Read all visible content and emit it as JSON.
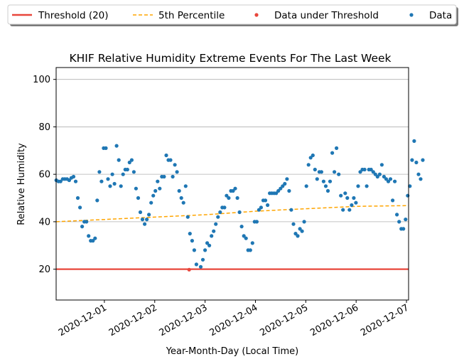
{
  "chart_data": {
    "type": "scatter",
    "title": "KHIF Relative Humidity Extreme Events For The Last Week",
    "xlabel": "Year-Month-Day (Local Time)",
    "ylabel": "Relative Humidity",
    "xlim": [
      "2020-11-30 01:00",
      "2020-12-07 01:00"
    ],
    "ylim": [
      7,
      105
    ],
    "yticks": [
      20,
      40,
      60,
      80,
      100
    ],
    "xticks": [
      "2020-12-01",
      "2020-12-02",
      "2020-12-03",
      "2020-12-04",
      "2020-12-05",
      "2020-12-06",
      "2020-12-07"
    ],
    "grid": "horizontal",
    "legend": {
      "placement": "top, above plot",
      "entries": [
        {
          "label": "Threshold (20)",
          "color": "#e8463b",
          "style": "solid line"
        },
        {
          "label": "5th Percentile",
          "color": "#ffa500",
          "style": "dashed line"
        },
        {
          "label": "Data under Threshold",
          "color": "#e8463b",
          "style": "dot"
        },
        {
          "label": "Data",
          "color": "#1f77b4",
          "style": "dot"
        }
      ]
    },
    "threshold": {
      "name": "Threshold (20)",
      "value": 20,
      "color": "#e8463b"
    },
    "percentile_5th": {
      "name": "5th Percentile",
      "color": "#ffa500",
      "points": [
        [
          "2020-11-30 01:00",
          40.0
        ],
        [
          "2020-12-01 01:00",
          41.0
        ],
        [
          "2020-12-02 01:00",
          42.0
        ],
        [
          "2020-12-03 01:00",
          43.0
        ],
        [
          "2020-12-04 01:00",
          44.5
        ],
        [
          "2020-12-05 01:00",
          45.5
        ],
        [
          "2020-12-06 01:00",
          46.5
        ],
        [
          "2020-12-07 01:00",
          46.8
        ]
      ]
    },
    "under_threshold": {
      "name": "Data under Threshold",
      "color": "#e8463b",
      "points": [
        [
          "2020-12-02 16:25",
          19.8
        ]
      ]
    },
    "series": [
      {
        "name": "Data",
        "color": "#1f77b4",
        "points": [
          [
            "2020-11-30 01:04",
            57.5
          ],
          [
            "2020-11-30 02:05",
            57
          ],
          [
            "2020-11-30 03:07",
            57
          ],
          [
            "2020-11-30 04:09",
            58
          ],
          [
            "2020-11-30 05:10",
            58
          ],
          [
            "2020-11-30 06:12",
            58
          ],
          [
            "2020-11-30 07:14",
            57.5
          ],
          [
            "2020-11-30 08:15",
            58.5
          ],
          [
            "2020-11-30 09:17",
            59
          ],
          [
            "2020-11-30 10:19",
            57
          ],
          [
            "2020-11-30 11:20",
            50
          ],
          [
            "2020-11-30 12:22",
            46
          ],
          [
            "2020-11-30 13:24",
            38
          ],
          [
            "2020-11-30 14:25",
            40
          ],
          [
            "2020-11-30 15:27",
            40
          ],
          [
            "2020-11-30 16:29",
            34
          ],
          [
            "2020-11-30 17:30",
            32
          ],
          [
            "2020-11-30 18:32",
            32
          ],
          [
            "2020-11-30 19:34",
            33
          ],
          [
            "2020-11-30 20:35",
            49
          ],
          [
            "2020-11-30 21:37",
            61
          ],
          [
            "2020-11-30 22:39",
            57
          ],
          [
            "2020-11-30 23:40",
            71
          ],
          [
            "2020-12-01 00:42",
            71
          ],
          [
            "2020-12-01 01:44",
            58
          ],
          [
            "2020-12-01 02:45",
            55
          ],
          [
            "2020-12-01 03:47",
            60
          ],
          [
            "2020-12-01 04:49",
            56
          ],
          [
            "2020-12-01 05:50",
            72
          ],
          [
            "2020-12-01 06:52",
            66
          ],
          [
            "2020-12-01 07:54",
            55
          ],
          [
            "2020-12-01 08:55",
            60
          ],
          [
            "2020-12-01 09:57",
            62
          ],
          [
            "2020-12-01 10:59",
            62
          ],
          [
            "2020-12-01 12:00",
            65
          ],
          [
            "2020-12-01 13:02",
            66
          ],
          [
            "2020-12-01 14:04",
            61
          ],
          [
            "2020-12-01 15:05",
            54
          ],
          [
            "2020-12-01 16:07",
            50
          ],
          [
            "2020-12-01 17:09",
            44
          ],
          [
            "2020-12-01 18:10",
            41
          ],
          [
            "2020-12-01 19:12",
            39
          ],
          [
            "2020-12-01 20:14",
            41
          ],
          [
            "2020-12-01 21:15",
            43
          ],
          [
            "2020-12-01 22:17",
            48
          ],
          [
            "2020-12-01 23:19",
            51
          ],
          [
            "2020-12-02 00:20",
            53
          ],
          [
            "2020-12-02 01:22",
            57
          ],
          [
            "2020-12-02 02:24",
            54
          ],
          [
            "2020-12-02 03:25",
            59
          ],
          [
            "2020-12-02 04:27",
            59
          ],
          [
            "2020-12-02 05:29",
            68
          ],
          [
            "2020-12-02 06:30",
            66
          ],
          [
            "2020-12-02 07:32",
            66
          ],
          [
            "2020-12-02 08:34",
            59
          ],
          [
            "2020-12-02 09:35",
            64
          ],
          [
            "2020-12-02 10:37",
            61
          ],
          [
            "2020-12-02 11:39",
            53
          ],
          [
            "2020-12-02 12:40",
            50
          ],
          [
            "2020-12-02 13:42",
            48
          ],
          [
            "2020-12-02 14:44",
            55
          ],
          [
            "2020-12-02 15:45",
            42
          ],
          [
            "2020-12-02 16:47",
            35
          ],
          [
            "2020-12-02 17:49",
            32
          ],
          [
            "2020-12-02 18:50",
            28
          ],
          [
            "2020-12-02 19:52",
            22
          ],
          [
            "2020-12-02 21:55",
            21
          ],
          [
            "2020-12-02 22:57",
            24
          ],
          [
            "2020-12-02 23:59",
            28
          ],
          [
            "2020-12-03 01:00",
            31
          ],
          [
            "2020-12-03 02:02",
            30
          ],
          [
            "2020-12-03 03:04",
            34
          ],
          [
            "2020-12-03 04:05",
            36
          ],
          [
            "2020-12-03 05:07",
            39
          ],
          [
            "2020-12-03 06:09",
            42
          ],
          [
            "2020-12-03 07:10",
            44
          ],
          [
            "2020-12-03 08:12",
            46
          ],
          [
            "2020-12-03 09:14",
            46
          ],
          [
            "2020-12-03 10:15",
            51
          ],
          [
            "2020-12-03 11:17",
            50
          ],
          [
            "2020-12-03 12:19",
            53
          ],
          [
            "2020-12-03 13:20",
            53
          ],
          [
            "2020-12-03 14:22",
            54
          ],
          [
            "2020-12-03 15:24",
            50
          ],
          [
            "2020-12-03 16:25",
            44
          ],
          [
            "2020-12-03 17:27",
            38
          ],
          [
            "2020-12-03 18:29",
            34
          ],
          [
            "2020-12-03 19:30",
            33
          ],
          [
            "2020-12-03 20:32",
            28
          ],
          [
            "2020-12-03 21:34",
            28
          ],
          [
            "2020-12-03 22:35",
            31
          ],
          [
            "2020-12-03 23:37",
            40
          ],
          [
            "2020-12-04 00:39",
            40
          ],
          [
            "2020-12-04 01:40",
            45
          ],
          [
            "2020-12-04 02:42",
            46
          ],
          [
            "2020-12-04 03:44",
            49
          ],
          [
            "2020-12-04 04:45",
            49
          ],
          [
            "2020-12-04 05:47",
            47
          ],
          [
            "2020-12-04 06:49",
            52
          ],
          [
            "2020-12-04 07:50",
            52
          ],
          [
            "2020-12-04 08:52",
            52
          ],
          [
            "2020-12-04 09:54",
            52
          ],
          [
            "2020-12-04 10:55",
            53
          ],
          [
            "2020-12-04 11:57",
            54
          ],
          [
            "2020-12-04 12:59",
            55
          ],
          [
            "2020-12-04 14:00",
            56
          ],
          [
            "2020-12-04 15:02",
            58
          ],
          [
            "2020-12-04 16:04",
            53
          ],
          [
            "2020-12-04 17:05",
            45
          ],
          [
            "2020-12-04 18:07",
            39
          ],
          [
            "2020-12-04 19:09",
            35
          ],
          [
            "2020-12-04 20:10",
            34
          ],
          [
            "2020-12-04 21:12",
            37
          ],
          [
            "2020-12-04 22:14",
            36
          ],
          [
            "2020-12-04 23:15",
            40
          ],
          [
            "2020-12-05 00:17",
            55
          ],
          [
            "2020-12-05 01:19",
            64
          ],
          [
            "2020-12-05 02:20",
            67
          ],
          [
            "2020-12-05 03:22",
            68
          ],
          [
            "2020-12-05 04:24",
            62
          ],
          [
            "2020-12-05 05:25",
            58
          ],
          [
            "2020-12-05 06:27",
            61
          ],
          [
            "2020-12-05 07:29",
            61
          ],
          [
            "2020-12-05 08:30",
            57
          ],
          [
            "2020-12-05 09:32",
            55
          ],
          [
            "2020-12-05 10:34",
            53
          ],
          [
            "2020-12-05 11:35",
            57
          ],
          [
            "2020-12-05 12:37",
            69
          ],
          [
            "2020-12-05 13:39",
            61
          ],
          [
            "2020-12-05 14:40",
            71
          ],
          [
            "2020-12-05 15:42",
            60
          ],
          [
            "2020-12-05 16:44",
            51
          ],
          [
            "2020-12-05 17:45",
            45
          ],
          [
            "2020-12-05 18:47",
            52
          ],
          [
            "2020-12-05 19:49",
            50
          ],
          [
            "2020-12-05 20:50",
            45
          ],
          [
            "2020-12-05 21:52",
            47
          ],
          [
            "2020-12-05 22:54",
            50
          ],
          [
            "2020-12-05 23:55",
            48
          ],
          [
            "2020-12-06 00:57",
            55
          ],
          [
            "2020-12-06 01:59",
            61
          ],
          [
            "2020-12-06 03:00",
            62
          ],
          [
            "2020-12-06 04:02",
            62
          ],
          [
            "2020-12-06 05:04",
            55
          ],
          [
            "2020-12-06 06:05",
            62
          ],
          [
            "2020-12-06 07:07",
            62
          ],
          [
            "2020-12-06 08:09",
            61
          ],
          [
            "2020-12-06 09:10",
            60
          ],
          [
            "2020-12-06 10:12",
            59
          ],
          [
            "2020-12-06 11:14",
            60
          ],
          [
            "2020-12-06 12:15",
            64
          ],
          [
            "2020-12-06 13:17",
            59
          ],
          [
            "2020-12-06 14:19",
            58
          ],
          [
            "2020-12-06 15:20",
            57
          ],
          [
            "2020-12-06 16:22",
            58
          ],
          [
            "2020-12-06 17:24",
            49
          ],
          [
            "2020-12-06 18:25",
            57
          ],
          [
            "2020-12-06 19:27",
            43
          ],
          [
            "2020-12-06 20:29",
            40
          ],
          [
            "2020-12-06 21:30",
            37
          ],
          [
            "2020-12-06 22:32",
            37
          ],
          [
            "2020-12-06 23:34",
            41
          ],
          [
            "2020-12-07 00:35",
            51
          ],
          [
            "2020-12-07 01:37",
            55
          ],
          [
            "2020-12-07 02:39",
            66
          ],
          [
            "2020-12-07 03:40",
            74
          ],
          [
            "2020-12-07 04:42",
            65
          ],
          [
            "2020-12-07 05:44",
            60
          ],
          [
            "2020-12-07 06:45",
            58
          ],
          [
            "2020-12-07 07:47",
            66
          ]
        ]
      }
    ]
  }
}
